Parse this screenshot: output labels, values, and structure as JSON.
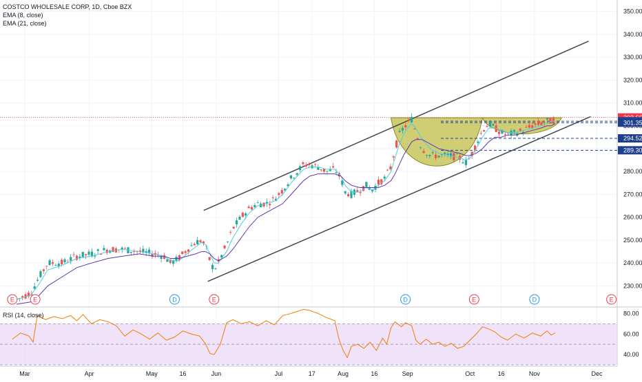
{
  "header": {
    "symbol_line": "COSTCO WHOLESALE CORP, 1D, Cboe BZX",
    "ema_fast_label": "EMA (8, close)",
    "ema_slow_label": "EMA (21, close)",
    "rsi_label": "RSI (14, close)"
  },
  "colors": {
    "candle_up": "#26a69a",
    "candle_down": "#ef5350",
    "ema_fast": "#4dd0e1",
    "ema_slow": "#5e35b1",
    "channel": "#434651",
    "cup_fill": "#b5b32a",
    "rsi_line": "#f57c00",
    "rsi_band": "#e9d6f7",
    "last_price_badge": "#f23645",
    "level_badge": "#1e3f8f",
    "earnings_marker": "#f23645",
    "dividend_marker": "#2196f3"
  },
  "chart_data": {
    "type": "candlestick",
    "title": "COSTCO WHOLESALE CORP, 1D, Cboe BZX",
    "x_ticks": [
      {
        "label": "Mar",
        "day": 0
      },
      {
        "label": "Apr",
        "day": 31
      },
      {
        "label": "May",
        "day": 61
      },
      {
        "label": "16",
        "day": 76
      },
      {
        "label": "Jun",
        "day": 92
      },
      {
        "label": "Jul",
        "day": 122
      },
      {
        "label": "17",
        "day": 138
      },
      {
        "label": "Aug",
        "day": 153
      },
      {
        "label": "16",
        "day": 168
      },
      {
        "label": "Sep",
        "day": 184
      },
      {
        "label": "Oct",
        "day": 214
      },
      {
        "label": "16",
        "day": 229
      },
      {
        "label": "Nov",
        "day": 245
      },
      {
        "label": "Dec",
        "day": 275
      }
    ],
    "y_ticks": [
      230,
      240,
      250,
      260,
      270,
      280,
      290,
      300,
      310,
      320,
      330,
      340,
      350
    ],
    "ylim": [
      222,
      355
    ],
    "price_path": [
      [
        -4,
        224
      ],
      [
        3,
        227
      ],
      [
        7,
        234
      ],
      [
        11,
        240
      ],
      [
        18,
        240
      ],
      [
        25,
        243
      ],
      [
        32,
        244
      ],
      [
        40,
        246
      ],
      [
        47,
        246
      ],
      [
        55,
        245
      ],
      [
        62,
        244
      ],
      [
        67,
        243
      ],
      [
        70,
        240
      ],
      [
        74,
        242
      ],
      [
        78,
        246
      ],
      [
        82,
        249
      ],
      [
        85,
        250
      ],
      [
        87,
        247
      ],
      [
        89,
        241
      ],
      [
        91,
        237
      ],
      [
        93,
        240
      ],
      [
        97,
        248
      ],
      [
        100,
        255
      ],
      [
        104,
        260
      ],
      [
        108,
        264
      ],
      [
        112,
        266
      ],
      [
        116,
        266
      ],
      [
        120,
        268
      ],
      [
        124,
        272
      ],
      [
        128,
        277
      ],
      [
        131,
        280
      ],
      [
        134,
        283
      ],
      [
        137,
        283
      ],
      [
        141,
        282
      ],
      [
        145,
        280
      ],
      [
        149,
        281
      ],
      [
        152,
        277
      ],
      [
        154,
        271
      ],
      [
        157,
        270
      ],
      [
        161,
        272
      ],
      [
        164,
        274
      ],
      [
        167,
        272
      ],
      [
        170,
        275
      ],
      [
        173,
        277
      ],
      [
        176,
        282
      ],
      [
        178,
        290
      ],
      [
        180,
        296
      ],
      [
        182,
        299
      ],
      [
        184,
        301
      ],
      [
        186,
        303
      ],
      [
        188,
        297
      ],
      [
        191,
        290
      ],
      [
        195,
        287
      ],
      [
        199,
        287
      ],
      [
        204,
        287
      ],
      [
        209,
        286
      ],
      [
        212,
        284
      ],
      [
        214,
        286
      ],
      [
        217,
        292
      ],
      [
        220,
        298
      ],
      [
        223,
        301
      ],
      [
        226,
        299
      ],
      [
        229,
        297
      ],
      [
        232,
        296
      ],
      [
        236,
        297
      ],
      [
        240,
        298
      ],
      [
        244,
        300
      ],
      [
        248,
        301
      ],
      [
        251,
        302
      ],
      [
        253,
        302
      ],
      [
        255,
        303
      ]
    ],
    "ema_8": [
      [
        -4,
        224
      ],
      [
        3,
        226
      ],
      [
        7,
        231
      ],
      [
        11,
        237
      ],
      [
        18,
        239
      ],
      [
        25,
        242
      ],
      [
        32,
        243
      ],
      [
        40,
        245
      ],
      [
        47,
        246
      ],
      [
        55,
        245
      ],
      [
        62,
        244
      ],
      [
        67,
        243
      ],
      [
        70,
        241
      ],
      [
        74,
        241
      ],
      [
        78,
        244
      ],
      [
        82,
        247
      ],
      [
        85,
        249
      ],
      [
        87,
        248
      ],
      [
        89,
        244
      ],
      [
        91,
        240
      ],
      [
        93,
        240
      ],
      [
        97,
        245
      ],
      [
        100,
        251
      ],
      [
        104,
        257
      ],
      [
        108,
        262
      ],
      [
        112,
        265
      ],
      [
        116,
        266
      ],
      [
        120,
        267
      ],
      [
        124,
        270
      ],
      [
        128,
        275
      ],
      [
        131,
        278
      ],
      [
        134,
        281
      ],
      [
        137,
        282
      ],
      [
        141,
        282
      ],
      [
        145,
        281
      ],
      [
        149,
        281
      ],
      [
        152,
        278
      ],
      [
        154,
        274
      ],
      [
        157,
        271
      ],
      [
        161,
        271
      ],
      [
        164,
        273
      ],
      [
        167,
        272
      ],
      [
        170,
        274
      ],
      [
        173,
        276
      ],
      [
        176,
        280
      ],
      [
        178,
        286
      ],
      [
        180,
        292
      ],
      [
        182,
        296
      ],
      [
        184,
        299
      ],
      [
        186,
        301
      ],
      [
        188,
        299
      ],
      [
        191,
        294
      ],
      [
        195,
        290
      ],
      [
        199,
        288
      ],
      [
        204,
        287
      ],
      [
        209,
        286
      ],
      [
        212,
        285
      ],
      [
        214,
        286
      ],
      [
        217,
        290
      ],
      [
        220,
        295
      ],
      [
        223,
        299
      ],
      [
        226,
        299
      ],
      [
        229,
        298
      ],
      [
        232,
        297
      ],
      [
        236,
        297
      ],
      [
        240,
        298
      ],
      [
        244,
        299
      ],
      [
        248,
        300
      ],
      [
        251,
        301
      ],
      [
        253,
        302
      ],
      [
        255,
        302
      ]
    ],
    "ema_21": [
      [
        -4,
        222
      ],
      [
        3,
        223
      ],
      [
        7,
        226
      ],
      [
        11,
        230
      ],
      [
        18,
        234
      ],
      [
        25,
        238
      ],
      [
        32,
        240
      ],
      [
        40,
        242
      ],
      [
        47,
        243
      ],
      [
        55,
        244
      ],
      [
        62,
        243
      ],
      [
        67,
        243
      ],
      [
        70,
        242
      ],
      [
        74,
        242
      ],
      [
        78,
        243
      ],
      [
        82,
        244
      ],
      [
        85,
        245
      ],
      [
        87,
        245
      ],
      [
        89,
        244
      ],
      [
        91,
        242
      ],
      [
        93,
        241
      ],
      [
        97,
        243
      ],
      [
        100,
        246
      ],
      [
        104,
        251
      ],
      [
        108,
        256
      ],
      [
        112,
        260
      ],
      [
        116,
        262
      ],
      [
        120,
        264
      ],
      [
        124,
        266
      ],
      [
        128,
        270
      ],
      [
        131,
        273
      ],
      [
        134,
        276
      ],
      [
        137,
        278
      ],
      [
        141,
        279
      ],
      [
        145,
        279
      ],
      [
        149,
        279
      ],
      [
        152,
        278
      ],
      [
        154,
        276
      ],
      [
        157,
        274
      ],
      [
        161,
        273
      ],
      [
        164,
        273
      ],
      [
        167,
        273
      ],
      [
        170,
        273
      ],
      [
        173,
        274
      ],
      [
        176,
        276
      ],
      [
        178,
        279
      ],
      [
        180,
        283
      ],
      [
        182,
        287
      ],
      [
        184,
        290
      ],
      [
        186,
        293
      ],
      [
        188,
        294
      ],
      [
        191,
        294
      ],
      [
        195,
        292
      ],
      [
        199,
        290
      ],
      [
        204,
        289
      ],
      [
        209,
        288
      ],
      [
        212,
        287
      ],
      [
        214,
        287
      ],
      [
        217,
        288
      ],
      [
        220,
        290
      ],
      [
        223,
        293
      ],
      [
        226,
        295
      ],
      [
        229,
        295
      ],
      [
        232,
        296
      ],
      [
        236,
        296
      ],
      [
        240,
        297
      ],
      [
        244,
        298
      ],
      [
        248,
        299
      ],
      [
        251,
        300
      ],
      [
        253,
        300
      ],
      [
        255,
        301
      ]
    ],
    "channel_upper": [
      [
        86,
        263
      ],
      [
        271,
        337
      ]
    ],
    "channel_lower": [
      [
        88,
        232
      ],
      [
        272,
        304
      ]
    ],
    "cup_1": {
      "left_day": 176,
      "right_day": 220,
      "rim": 303.5,
      "bottom": 281
    },
    "cup_2": {
      "left_day": 220,
      "right_day": 258,
      "rim": 303.5,
      "bottom": 296
    },
    "price_levels": [
      {
        "label": "303.66",
        "value": 303.66,
        "style": "last"
      },
      {
        "label": "301.99",
        "value": 301.99,
        "style": "level"
      },
      {
        "label": "301.35",
        "value": 301.35,
        "style": "level"
      },
      {
        "label": "294.52",
        "value": 294.52,
        "style": "level"
      },
      {
        "label": "289.30",
        "value": 289.3,
        "style": "level"
      }
    ],
    "events": [
      {
        "label": "E",
        "day": -6,
        "kind": "earnings"
      },
      {
        "label": "E",
        "day": 5,
        "kind": "earnings"
      },
      {
        "label": "D",
        "day": 72,
        "kind": "dividend"
      },
      {
        "label": "E",
        "day": 91,
        "kind": "earnings"
      },
      {
        "label": "D",
        "day": 183,
        "kind": "dividend"
      },
      {
        "label": "E",
        "day": 216,
        "kind": "earnings"
      },
      {
        "label": "D",
        "day": 245,
        "kind": "dividend"
      },
      {
        "label": "E",
        "day": 282,
        "kind": "earnings"
      }
    ],
    "rsi": {
      "ylim": [
        30,
        85
      ],
      "y_ticks": [
        40,
        60,
        80
      ],
      "band": [
        30,
        70
      ],
      "midline": 50,
      "path": [
        [
          -6,
          55
        ],
        [
          -2,
          61
        ],
        [
          2,
          58
        ],
        [
          4,
          52
        ],
        [
          6,
          78
        ],
        [
          10,
          74
        ],
        [
          14,
          77
        ],
        [
          18,
          75
        ],
        [
          22,
          78
        ],
        [
          25,
          73
        ],
        [
          28,
          79
        ],
        [
          32,
          70
        ],
        [
          36,
          74
        ],
        [
          40,
          72
        ],
        [
          44,
          68
        ],
        [
          48,
          58
        ],
        [
          52,
          64
        ],
        [
          56,
          60
        ],
        [
          60,
          55
        ],
        [
          64,
          61
        ],
        [
          68,
          54
        ],
        [
          72,
          57
        ],
        [
          76,
          63
        ],
        [
          80,
          60
        ],
        [
          84,
          58
        ],
        [
          87,
          50
        ],
        [
          89,
          41
        ],
        [
          91,
          40
        ],
        [
          94,
          50
        ],
        [
          97,
          71
        ],
        [
          100,
          74
        ],
        [
          104,
          70
        ],
        [
          108,
          72
        ],
        [
          112,
          68
        ],
        [
          116,
          73
        ],
        [
          120,
          69
        ],
        [
          124,
          78
        ],
        [
          128,
          80
        ],
        [
          131,
          82
        ],
        [
          134,
          84
        ],
        [
          137,
          83
        ],
        [
          141,
          80
        ],
        [
          145,
          76
        ],
        [
          149,
          73
        ],
        [
          151,
          55
        ],
        [
          153,
          44
        ],
        [
          155,
          37
        ],
        [
          157,
          48
        ],
        [
          160,
          50
        ],
        [
          163,
          46
        ],
        [
          166,
          52
        ],
        [
          169,
          44
        ],
        [
          172,
          56
        ],
        [
          174,
          50
        ],
        [
          176,
          66
        ],
        [
          178,
          72
        ],
        [
          181,
          67
        ],
        [
          183,
          71
        ],
        [
          186,
          68
        ],
        [
          188,
          54
        ],
        [
          190,
          50
        ],
        [
          193,
          55
        ],
        [
          196,
          50
        ],
        [
          199,
          52
        ],
        [
          202,
          48
        ],
        [
          205,
          51
        ],
        [
          208,
          46
        ],
        [
          211,
          48
        ],
        [
          214,
          54
        ],
        [
          217,
          60
        ],
        [
          220,
          67
        ],
        [
          223,
          65
        ],
        [
          226,
          62
        ],
        [
          229,
          57
        ],
        [
          232,
          54
        ],
        [
          236,
          60
        ],
        [
          240,
          56
        ],
        [
          244,
          61
        ],
        [
          248,
          58
        ],
        [
          251,
          63
        ],
        [
          253,
          59
        ],
        [
          255,
          61
        ]
      ]
    }
  }
}
